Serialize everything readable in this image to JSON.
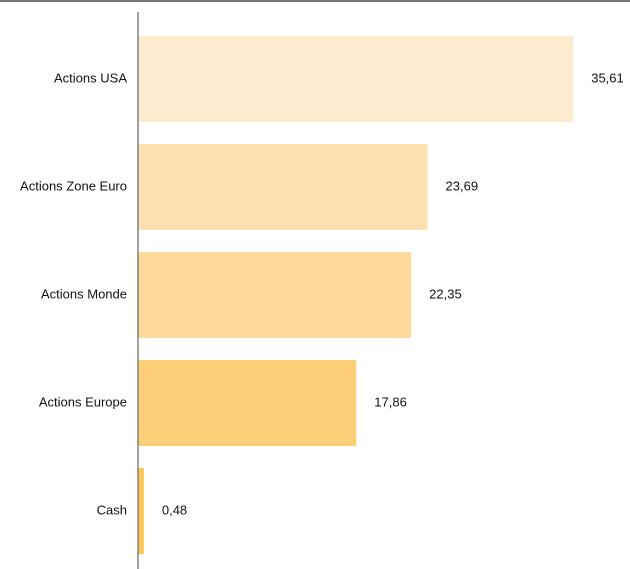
{
  "chart_data": {
    "type": "bar",
    "orientation": "horizontal",
    "categories": [
      "Actions USA",
      "Actions Zone Euro",
      "Actions Monde",
      "Actions Europe",
      "Cash"
    ],
    "values": [
      35.61,
      23.69,
      22.35,
      17.86,
      0.48
    ],
    "value_labels": [
      "35,61",
      "23,69",
      "22,35",
      "17,86",
      "0,48"
    ],
    "colors": [
      "#fdebcf",
      "#fde0b0",
      "#fdd99c",
      "#fdcf78",
      "#fcc858"
    ],
    "xlim": [
      0,
      36
    ],
    "grid": false,
    "legend": "none",
    "title": "",
    "xlabel": "",
    "ylabel": ""
  }
}
